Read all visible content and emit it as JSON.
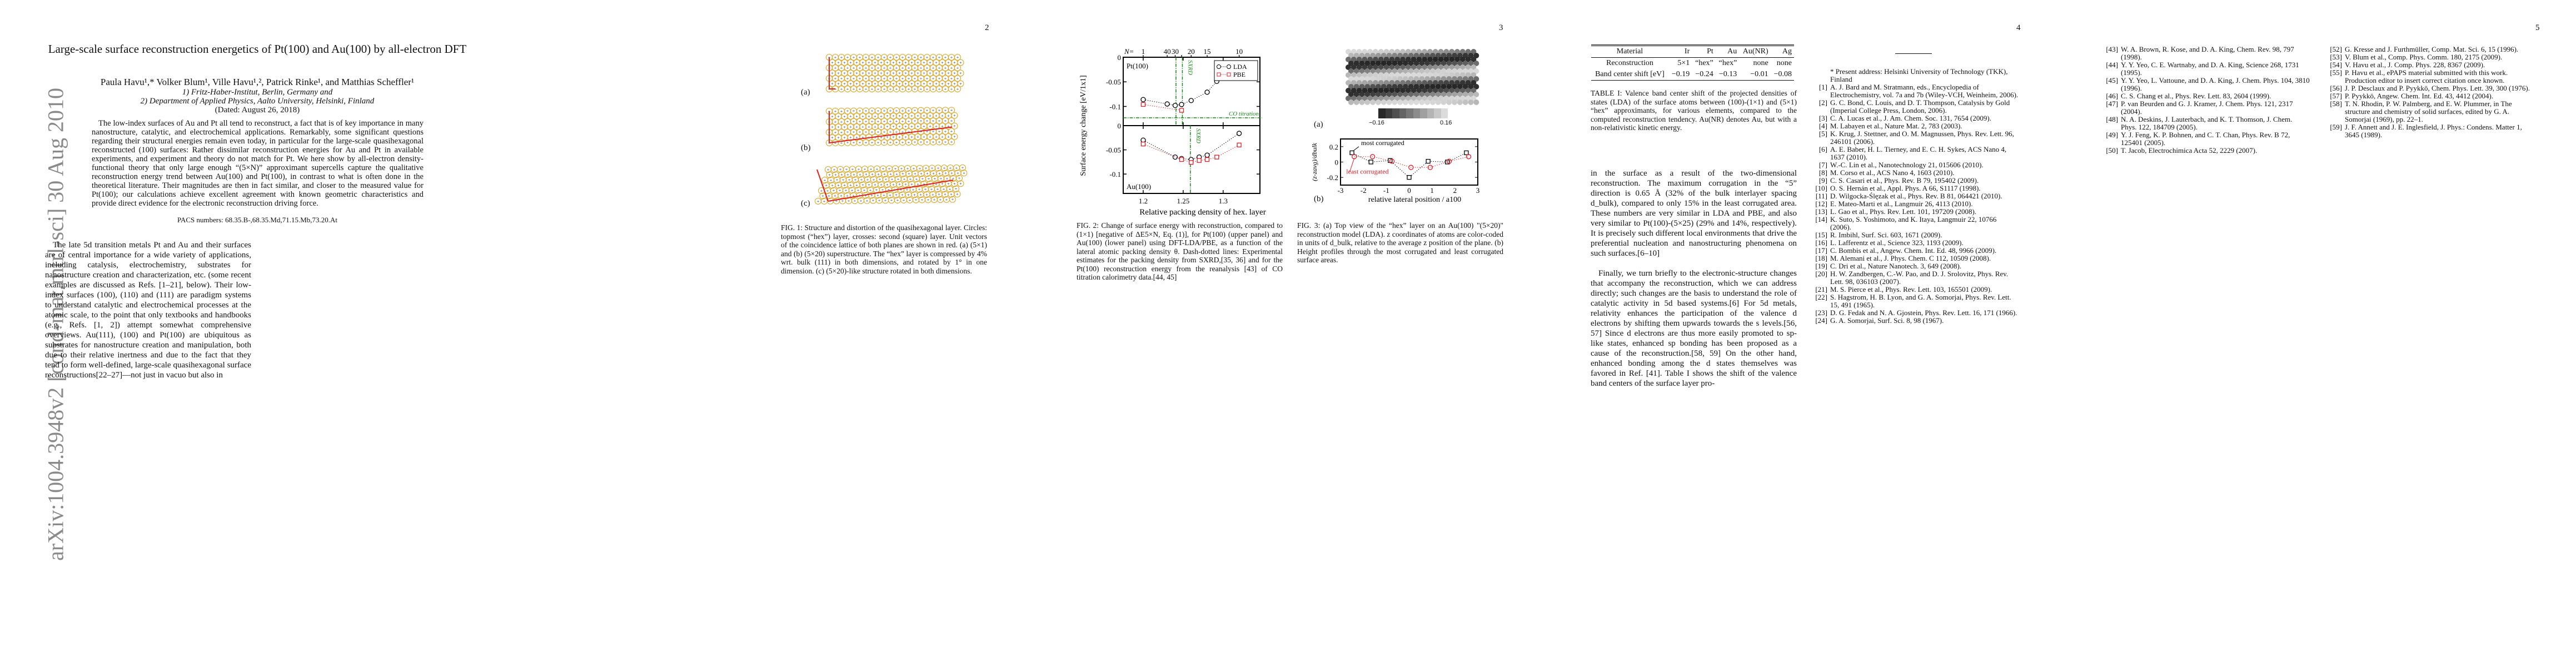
{
  "arxiv_stamp": "arXiv:1004.3948v2  [cond-mat.mtrl-sci]  30 Aug 2010",
  "page1": {
    "title": "Large-scale surface reconstruction energetics of Pt(100) and Au(100) by all-electron DFT",
    "authors": "Paula Havu¹,* Volker Blum¹, Ville Havu¹,², Patrick Rinke¹, and Matthias Scheffler¹",
    "affiliation1": "1) Fritz-Haber-Institut, Berlin, Germany and",
    "affiliation2": "2) Department of Applied Physics, Aalto University, Helsinki, Finland",
    "date": "(Dated: August 26, 2018)",
    "abstract": "The low-index surfaces of Au and Pt all tend to reconstruct, a fact that is of key importance in many nanostructure, catalytic, and electrochemical applications. Remarkably, some significant questions regarding their structural energies remain even today, in particular for the large-scale quasihexagonal reconstructed (100) surfaces: Rather dissimilar reconstruction energies for Au and Pt in available experiments, and experiment and theory do not match for Pt. We here show by all-electron density-functional theory that only large enough “(5×N)” approximant supercells capture the qualitative reconstruction energy trend between Au(100) and Pt(100), in contrast to what is often done in the theoretical literature. Their magnitudes are then in fact similar, and closer to the measured value for Pt(100); our calculations achieve excellent agreement with known geometric characteristics and provide direct evidence for the electronic reconstruction driving force.",
    "pacs": "PACS numbers: 68.35.B-,68.35.Md,71.15.Mb,73.20.At",
    "para1": "The late 5d transition metals Pt and Au and their surfaces are of central importance for a wide variety of applications, including catalysis, electrochemistry, substrates for nanostructure creation and characterization, etc. (some recent examples are discussed as Refs. [1–21], below). Their low-index surfaces (100), (110) and (111) are paradigm systems to understand catalytic and electrochemical processes at the atomic scale, to the point that only textbooks and handbooks (e.g., Refs. [1, 2]) attempt somewhat comprehensive overviews. Au(111), (100) and Pt(100) are ubiquitous as substrates for nanostructure creation and manipulation, both due to their relative inertness and due to the fact that they tend to form well-defined, large-scale quasihexagonal surface reconstructions[22–27]—not just in vacuo but also in"
  },
  "page2": {
    "page_number": "2",
    "fig1_labels": [
      "(a)",
      "(b)",
      "(c)"
    ],
    "fig1_caption": "FIG. 1: Structure and distortion of the quasihexagonal layer. Circles: topmost (“hex”) layer, crosses: second (square) layer. Unit vectors of the coincidence lattice of both planes are shown in red. (a) (5×1) and (b) (5×20) superstructure. The “hex” layer is compressed by 4% wrt. bulk (111) in both dimensions, and rotated by 1° in one dimension. (c) (5×20)-like structure rotated in both dimensions."
  },
  "page3": {
    "page_number": "3",
    "fig2_caption": "FIG. 2: Change of surface energy with reconstruction, compared to (1×1) [negative of ΔE5×N, Eq. (1)], for Pt(100) (upper panel) and Au(100) (lower panel) using DFT-LDA/PBE, as a function of the lateral atomic packing density θ. Dash-dotted lines: Experimental estimates for the packing density from SXRD,[35, 36] and for the Pt(100) reconstruction energy from the reanalysis [43] of CO titration calorimetry data.[44, 45]",
    "fig3_label_a": "(a)",
    "fig3_label_b": "(b)",
    "fig3_colorbar": {
      "min_label": "−0.16",
      "max_label": "0.16"
    },
    "fig3_caption": "FIG. 3: (a) Top view of the “hex” layer on an Au(100) \"(5×20)\" reconstruction model (LDA). z coordinates of atoms are color-coded in units of d_bulk, relative to the average z position of the plane. (b) Height profiles through the most corrugated and least corrugated surface areas."
  },
  "page4": {
    "page_number": "4",
    "table": {
      "headers": [
        "Material",
        "Ir",
        "Pt",
        "Au",
        "Au(NR)",
        "Ag"
      ],
      "rows": [
        [
          "Reconstruction",
          "5×1",
          "“hex”",
          "“hex”",
          "none",
          "none"
        ],
        [
          "Band center shift [eV]",
          "−0.19",
          "−0.24",
          "−0.13",
          "−0.01",
          "−0.08"
        ]
      ],
      "caption": "TABLE I: Valence band center shift of the projected densities of states (LDA) of the surface atoms between (100)-(1×1) and (5×1) “hex” approximants, for various elements, compared to the computed reconstruction tendency. Au(NR) denotes Au, but with a non-relativistic kinetic energy."
    },
    "para1": "in the surface as a result of the two-dimensional reconstruction. The maximum corrugation in the “5” direction is 0.65 Å (32% of the bulk interlayer spacing d_bulk), compared to only 15% in the least corrugated area. These numbers are very similar in LDA and PBE, and also very similar to Pt(100)-(5×25) (29% and 14%, respectively). It is precisely such different local environments that drive the preferential nucleation and nanostructuring phenomena on such surfaces.[6–10]",
    "para2": "Finally, we turn briefly to the electronic-structure changes that accompany the reconstruction, which we can address directly; such changes are the basis to understand the role of catalytic activity in 5d based systems.[6] For 5d metals, relativity enhances the participation of the valence d electrons by shifting them upwards towards the s levels.[56, 57] Since d electrons are thus more easily promoted to sp-like states, enhanced sp bonding has been proposed as a cause of the reconstruction.[58, 59] On the other hand, enhanced bonding among the d states themselves was favored in Ref. [41]. Table I shows the shift of the valence band centers of the surface layer pro-",
    "footnote": "* Present address: Helsinki University of Technology (TKK), Finland",
    "refs": [
      {
        "n": "[1]",
        "t": "A. J. Bard and M. Stratmann, eds., Encyclopedia of Electrochemistry, vol. 7a and 7b (Wiley-VCH, Weinheim, 2006)."
      },
      {
        "n": "[2]",
        "t": "G. C. Bond, C. Louis, and D. T. Thompson, Catalysis by Gold (Imperial College Press, London, 2006)."
      },
      {
        "n": "[3]",
        "t": "C. A. Lucas et al., J. Am. Chem. Soc. 131, 7654 (2009)."
      },
      {
        "n": "[4]",
        "t": "M. Labayen et al., Nature Mat. 2, 783 (2003)."
      },
      {
        "n": "[5]",
        "t": "K. Krug, J. Stettner, and O. M. Magnussen, Phys. Rev. Lett. 96, 246101 (2006)."
      },
      {
        "n": "[6]",
        "t": "A. E. Baber, H. L. Tierney, and E. C. H. Sykes, ACS Nano 4, 1637 (2010)."
      },
      {
        "n": "[7]",
        "t": "W.-C. Lin et al., Nanotechnology 21, 015606 (2010)."
      },
      {
        "n": "[8]",
        "t": "M. Corso et al., ACS Nano 4, 1603 (2010)."
      },
      {
        "n": "[9]",
        "t": "C. S. Casari et al., Phys. Rev. B 79, 195402 (2009)."
      },
      {
        "n": "[10]",
        "t": "O. S. Hernán et al., Appl. Phys. A 66, S1117 (1998)."
      },
      {
        "n": "[11]",
        "t": "D. Wilgocka-Ślęzak et al., Phys. Rev. B 81, 064421 (2010)."
      },
      {
        "n": "[12]",
        "t": "E. Mateo-Marti et al., Langmuir 26, 4113 (2010)."
      },
      {
        "n": "[13]",
        "t": "L. Gao et al., Phys. Rev. Lett. 101, 197209 (2008)."
      },
      {
        "n": "[14]",
        "t": "K. Suto, S. Yoshimoto, and K. Itaya, Langmuir 22, 10766 (2006)."
      },
      {
        "n": "[15]",
        "t": "R. Imbihl, Surf. Sci. 603, 1671 (2009)."
      },
      {
        "n": "[16]",
        "t": "L. Lafferentz et al., Science 323, 1193 (2009)."
      },
      {
        "n": "[17]",
        "t": "C. Bombis et al., Angew. Chem. Int. Ed. 48, 9966 (2009)."
      },
      {
        "n": "[18]",
        "t": "M. Alemani et al., J. Phys. Chem. C 112, 10509 (2008)."
      },
      {
        "n": "[19]",
        "t": "C. Dri et al., Nature Nanotech. 3, 649 (2008)."
      },
      {
        "n": "[20]",
        "t": "H. W. Zandbergen, C.-W. Pao, and D. J. Srolovitz, Phys. Rev. Lett. 98, 036103 (2007)."
      },
      {
        "n": "[21]",
        "t": "M. S. Pierce et al., Phys. Rev. Lett. 103, 165501 (2009)."
      },
      {
        "n": "[22]",
        "t": "S. Hagstrom, H. B. Lyon, and G. A. Somorjai, Phys. Rev. Lett. 15, 491 (1965)."
      },
      {
        "n": "[23]",
        "t": "D. G. Fedak and N. A. Gjostein, Phys. Rev. Lett. 16, 171 (1966)."
      },
      {
        "n": "[24]",
        "t": "G. A. Somorjai, Surf. Sci. 8, 98 (1967)."
      }
    ]
  },
  "page5": {
    "page_number": "5",
    "refs_left": [
      {
        "n": "[43]",
        "t": "W. A. Brown, R. Kose, and D. A. King, Chem. Rev. 98, 797 (1998)."
      },
      {
        "n": "[44]",
        "t": "Y. Y. Yeo, C. E. Wartnaby, and D. A. King, Science 268, 1731 (1995)."
      },
      {
        "n": "[45]",
        "t": "Y. Y. Yeo, L. Vattoune, and D. A. King, J. Chem. Phys. 104, 3810 (1996)."
      },
      {
        "n": "[46]",
        "t": "C. S. Chang et al., Phys. Rev. Lett. 83, 2604 (1999)."
      },
      {
        "n": "[47]",
        "t": "P. van Beurden and G. J. Kramer, J. Chem. Phys. 121, 2317 (2004)."
      },
      {
        "n": "[48]",
        "t": "N. A. Deskins, J. Lauterbach, and K. T. Thomson, J. Chem. Phys. 122, 184709 (2005)."
      },
      {
        "n": "[49]",
        "t": "Y. J. Feng, K. P. Bohnen, and C. T. Chan, Phys. Rev. B 72, 125401 (2005)."
      },
      {
        "n": "[50]",
        "t": "T. Jacob, Electrochimica Acta 52, 2229 (2007)."
      }
    ],
    "refs_right": [
      {
        "n": "[52]",
        "t": "G. Kresse and J. Furthmüller, Comp. Mat. Sci. 6, 15 (1996)."
      },
      {
        "n": "[53]",
        "t": "V. Blum et al., Comp. Phys. Comm. 180, 2175 (2009)."
      },
      {
        "n": "[54]",
        "t": "V. Havu et al., J. Comp. Phys. 228, 8367 (2009)."
      },
      {
        "n": "[55]",
        "t": "P. Havu et al., ePAPS material submitted with this work. Production editor to insert correct citation once known."
      },
      {
        "n": "[56]",
        "t": "J. P. Desclaux and P. Pyykkö, Chem. Phys. Lett. 39, 300 (1976)."
      },
      {
        "n": "[57]",
        "t": "P. Pyykkö, Angew. Chem. Int. Ed. 43, 4412 (2004)."
      },
      {
        "n": "[58]",
        "t": "T. N. Rhodin, P. W. Palmberg, and E. W. Plummer, in The structure and chemistry of solid surfaces, edited by G. A. Somorjai (1969), pp. 22–1."
      },
      {
        "n": "[59]",
        "t": "J. F. Annett and J. E. Inglesfield, J. Phys.: Condens. Matter 1, 3645 (1989)."
      }
    ]
  },
  "chart_data": [
    {
      "type": "scatter",
      "ylabel": "Surface energy change [eV/1x1]",
      "xlabel": "Relative packing density of hex. layer",
      "xlim": [
        1.175,
        1.346
      ],
      "x_ticks": [
        "1.2",
        "1.25",
        "1.3"
      ],
      "top_axis": {
        "prefix": "N=",
        "ticks": [
          {
            "x": 1.2,
            "label": "1"
          },
          {
            "x": 1.23,
            "label": "40"
          },
          {
            "x": 1.24,
            "label": "30"
          },
          {
            "x": 1.248,
            "label": ""
          },
          {
            "x": 1.26,
            "label": "20"
          },
          {
            "x": 1.28,
            "label": "15"
          },
          {
            "x": 1.32,
            "label": "10"
          }
        ]
      },
      "legend": {
        "position": "top-right",
        "entries": [
          "LDA",
          "PBE"
        ]
      },
      "colors": {
        "LDA": "#000000",
        "PBE": "#e0202a",
        "experiment": "#1a8a1a"
      },
      "panels": [
        {
          "label": "Pt(100)",
          "ylim": [
            -0.139,
            0
          ],
          "y_ticks": [
            "0",
            "-0.05",
            "-0.1"
          ],
          "series": [
            {
              "name": "LDA",
              "x": [
                1.2,
                1.23,
                1.24,
                1.248,
                1.26,
                1.28,
                1.292
              ],
              "y": [
                -0.086,
                -0.095,
                -0.098,
                -0.096,
                -0.088,
                -0.071,
                -0.049
              ]
            },
            {
              "name": "PBE",
              "x": [
                1.2,
                1.248
              ],
              "y": [
                -0.096,
                -0.108
              ]
            }
          ],
          "vlines": [
            {
              "x": 1.241,
              "label": ""
            },
            {
              "x": 1.249,
              "label": "SXRD"
            }
          ],
          "hlines": [
            {
              "y": -0.123,
              "label": "CO titration"
            }
          ]
        },
        {
          "label": "Au(100)",
          "ylim": [
            -0.14,
            0
          ],
          "y_ticks": [
            "0",
            "-0.05",
            "-0.1"
          ],
          "series": [
            {
              "name": "LDA",
              "x": [
                1.2,
                1.24,
                1.248,
                1.26,
                1.27,
                1.28,
                1.32
              ],
              "y": [
                -0.03,
                -0.065,
                -0.068,
                -0.07,
                -0.065,
                -0.061,
                -0.016
              ]
            },
            {
              "name": "PBE",
              "x": [
                1.2,
                1.248,
                1.26,
                1.27,
                1.28,
                1.292,
                1.32
              ],
              "y": [
                -0.038,
                -0.07,
                -0.076,
                -0.072,
                -0.07,
                -0.065,
                -0.04
              ]
            }
          ],
          "vlines": [
            {
              "x": 1.259,
              "label": "SXRD"
            }
          ]
        }
      ]
    },
    {
      "type": "line",
      "xlabel": "relative lateral position / a100",
      "ylabel": "(z-zavg)/dbulk",
      "xlim": [
        -3,
        3
      ],
      "ylim": [
        -0.3,
        0.3
      ],
      "x_ticks": [
        "-3",
        "-2",
        "-1",
        "0",
        "1",
        "2",
        "3"
      ],
      "y_ticks": [
        "0.2",
        "0",
        "-0.2"
      ],
      "series": [
        {
          "name": "most corrugated",
          "color": "#000000",
          "marker": "square",
          "x": [
            -2.5,
            -1.67,
            -0.83,
            0,
            0.83,
            1.67,
            2.5
          ],
          "y": [
            0.12,
            0.0,
            0.02,
            -0.2,
            0.01,
            0.0,
            0.12
          ]
        },
        {
          "name": "least corrugated",
          "color": "#e0202a",
          "marker": "circle",
          "x": [
            -2.4,
            -1.6,
            -0.75,
            0.08,
            0.92,
            1.75,
            2.6
          ],
          "y": [
            0.07,
            0.07,
            0.01,
            -0.07,
            -0.07,
            0.01,
            0.07
          ]
        }
      ]
    }
  ]
}
